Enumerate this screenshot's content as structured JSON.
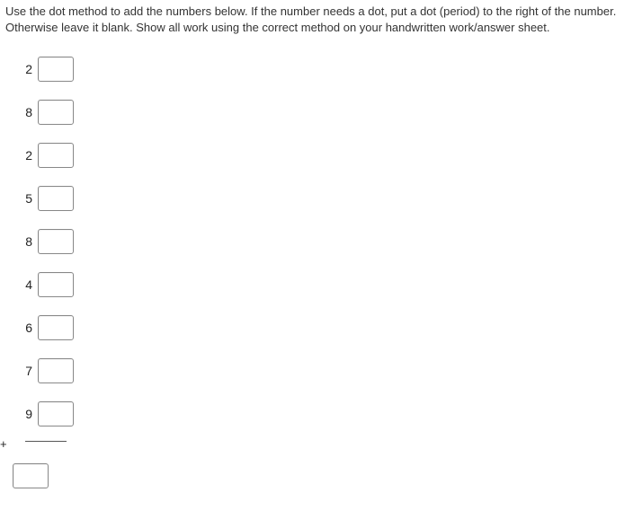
{
  "instructions": "Use the dot method to add the numbers below. If the number needs a dot, put a dot (period) to the right of the number. Otherwise leave it blank.  Show all work using the correct method on your handwritten work/answer sheet.",
  "numbers": [
    "2",
    "8",
    "2",
    "5",
    "8",
    "4",
    "6",
    "7",
    "9"
  ],
  "operator": "+",
  "input_value": "",
  "answer_value": ""
}
